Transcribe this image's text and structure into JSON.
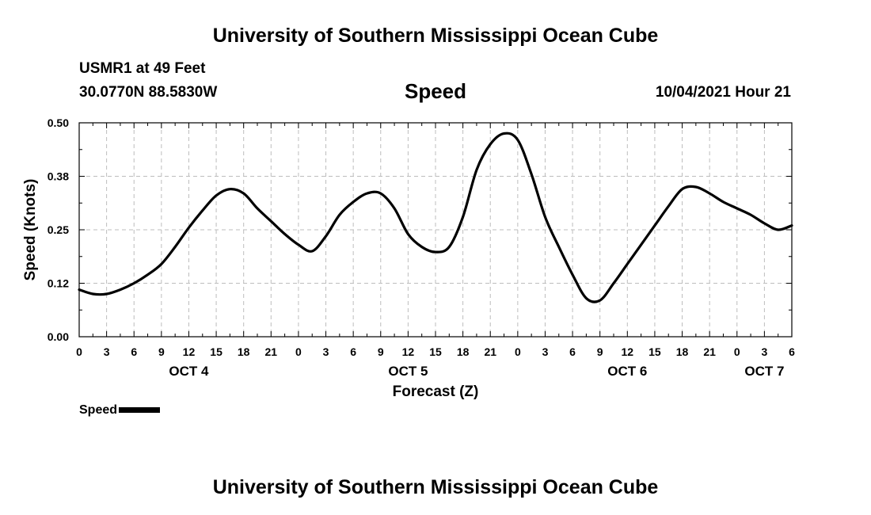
{
  "header": {
    "title": "University of Southern Mississippi Ocean Cube",
    "station": "USMR1 at 49 Feet",
    "coordinates": "30.0770N  88.5830W",
    "parameter": "Speed",
    "datetime": "10/04/2021 Hour 21"
  },
  "footer": {
    "title": "University of Southern Mississippi Ocean Cube"
  },
  "legend": {
    "label": "Speed"
  },
  "chart_data": {
    "type": "line",
    "title": "Speed",
    "xlabel": "Forecast (Z)",
    "ylabel": "Speed (Knots)",
    "ylim": [
      0,
      0.5
    ],
    "xlim": [
      0,
      78
    ],
    "yticks": [
      0.0,
      0.125,
      0.25,
      0.375,
      0.5
    ],
    "ytick_labels": [
      "0.00",
      "0.12",
      "0.25",
      "0.38",
      "0.50"
    ],
    "xtick_values": [
      0,
      3,
      6,
      9,
      12,
      15,
      18,
      21,
      24,
      27,
      30,
      33,
      36,
      39,
      42,
      45,
      48,
      51,
      54,
      57,
      60,
      63,
      66,
      69,
      72,
      75,
      78
    ],
    "xtick_labels": [
      "0",
      "3",
      "6",
      "9",
      "12",
      "15",
      "18",
      "21",
      "0",
      "3",
      "6",
      "9",
      "12",
      "15",
      "18",
      "21",
      "0",
      "3",
      "6",
      "9",
      "12",
      "15",
      "18",
      "21",
      "0",
      "3",
      "6"
    ],
    "day_labels": [
      {
        "label": "OCT 4",
        "x": 12
      },
      {
        "label": "OCT 5",
        "x": 36
      },
      {
        "label": "OCT 6",
        "x": 60
      },
      {
        "label": "OCT 7",
        "x": 75
      }
    ],
    "grid": true,
    "series": [
      {
        "name": "Speed",
        "color": "#000000",
        "x": [
          0,
          1.5,
          3,
          4.5,
          6,
          7.5,
          9,
          10.5,
          12,
          13.5,
          15,
          16.5,
          18,
          19.5,
          21,
          22.5,
          24,
          25.5,
          27,
          28.5,
          30,
          31.5,
          33,
          34.5,
          36,
          37.5,
          39,
          40.5,
          42,
          43.5,
          45,
          46.5,
          48,
          49.5,
          51,
          52.5,
          54,
          55.5,
          57,
          58.5,
          60,
          61.5,
          63,
          64.5,
          66,
          67.5,
          69,
          70.5,
          72,
          73.5,
          75,
          76.5,
          78
        ],
        "values": [
          0.11,
          0.1,
          0.1,
          0.11,
          0.125,
          0.145,
          0.17,
          0.21,
          0.255,
          0.295,
          0.33,
          0.345,
          0.335,
          0.3,
          0.27,
          0.24,
          0.215,
          0.2,
          0.235,
          0.285,
          0.315,
          0.335,
          0.335,
          0.3,
          0.24,
          0.21,
          0.198,
          0.21,
          0.28,
          0.39,
          0.45,
          0.475,
          0.46,
          0.38,
          0.28,
          0.21,
          0.145,
          0.09,
          0.085,
          0.125,
          0.17,
          0.215,
          0.26,
          0.305,
          0.345,
          0.35,
          0.335,
          0.315,
          0.3,
          0.285,
          0.265,
          0.25,
          0.26
        ]
      }
    ]
  }
}
